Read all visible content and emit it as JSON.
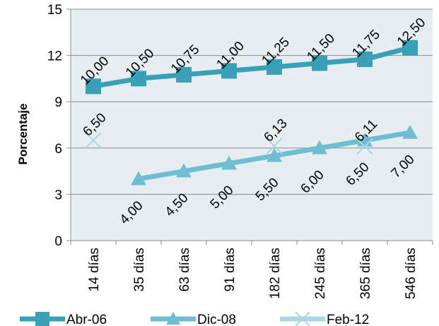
{
  "chart_data": {
    "type": "line",
    "ylabel": "Porcentaje",
    "xlabel": "",
    "ylim": [
      0,
      15
    ],
    "yticks": [
      0,
      3,
      6,
      9,
      12,
      15
    ],
    "grid": true,
    "legend_position": "bottom",
    "categories": [
      "14 días",
      "35 días",
      "63 días",
      "91 días",
      "182 días",
      "245 días",
      "365 días",
      "546 días"
    ],
    "series": [
      {
        "name": "Abr-06",
        "color": "#3aa0b8",
        "marker": "square",
        "values": [
          10.0,
          10.5,
          10.75,
          11.0,
          11.25,
          11.5,
          11.75,
          12.5
        ],
        "labels": [
          "10,00",
          "10,50",
          "10,75",
          "11,00",
          "11,25",
          "11,50",
          "11,75",
          "12,50"
        ]
      },
      {
        "name": "Dic-08",
        "color": "#6fbdd2",
        "marker": "triangle",
        "values": [
          null,
          4.0,
          4.5,
          5.0,
          5.5,
          6.0,
          6.5,
          7.0
        ],
        "labels": [
          "",
          "4,00",
          "4,50",
          "5,00",
          "5,50",
          "6,00",
          "6,50",
          "7,00"
        ]
      },
      {
        "name": "Feb-12",
        "color": "#a9d7e4",
        "marker": "x",
        "values": [
          6.5,
          null,
          null,
          null,
          6.13,
          null,
          6.11,
          null
        ],
        "labels": [
          "6,50",
          "",
          "",
          "",
          "6,13",
          "",
          "6,11",
          ""
        ]
      }
    ]
  }
}
